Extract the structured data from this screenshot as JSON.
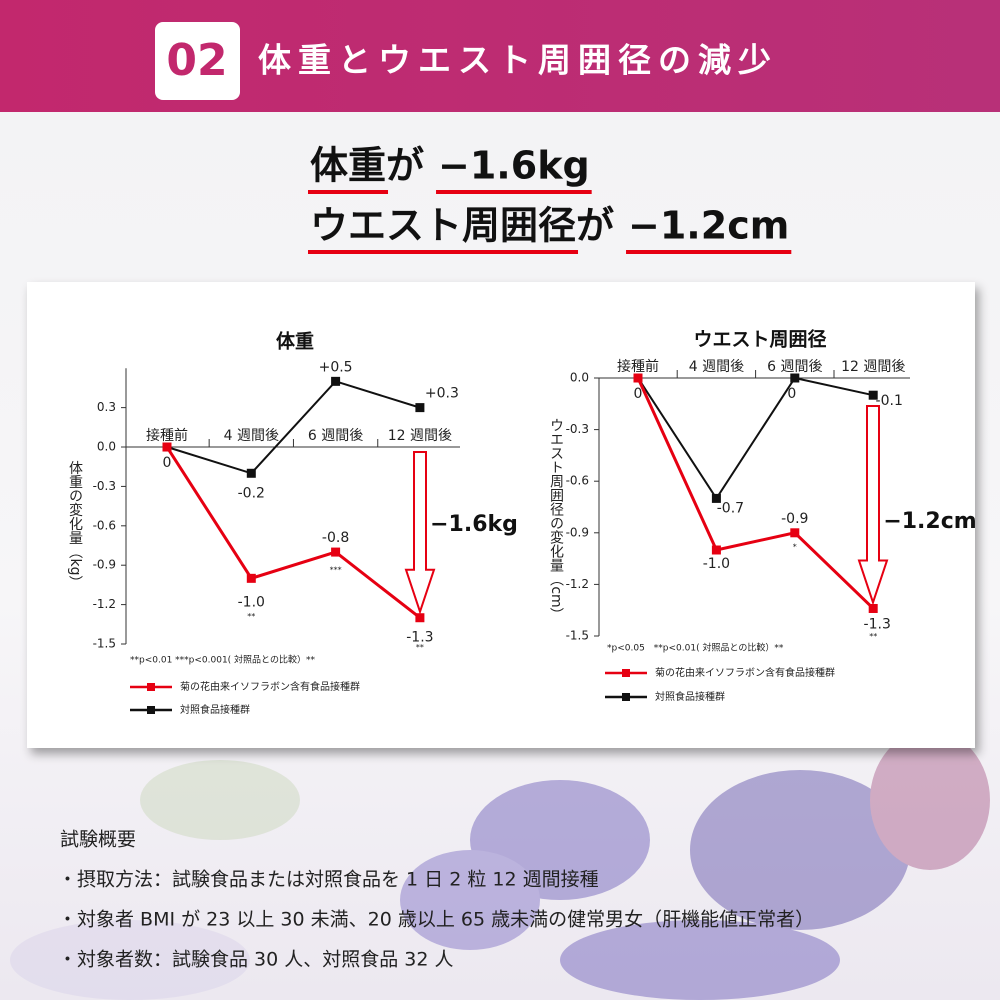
{
  "header": {
    "number": "02",
    "title": "体重とウエスト周囲径の減少"
  },
  "headline": [
    {
      "subject": "体重",
      "particle": "が",
      "value": "−1.6kg"
    },
    {
      "subject": "ウエスト周囲径",
      "particle": "が",
      "value": "−1.2cm"
    }
  ],
  "chart_data": [
    {
      "type": "line",
      "title": "体重",
      "y_label": "体重の変化量（kg）",
      "categories": [
        "接種前",
        "4 週間後",
        "6 週間後",
        "12 週間後"
      ],
      "ylim": [
        -1.5,
        0.6
      ],
      "yticks": [
        {
          "value": 0.3,
          "label": "0.3"
        },
        {
          "value": 0,
          "label": "0.0"
        },
        -0.3,
        -0.6,
        -0.9,
        -1.2,
        -1.5
      ],
      "series": [
        {
          "name": "菊の花由来イソフラボン含有食品接種群",
          "color": "#e60012",
          "values": [
            0,
            -1.0,
            -0.8,
            -1.3
          ],
          "value_labels": [
            "0",
            "-1.0",
            "-0.8",
            "-1.3"
          ],
          "significance": [
            null,
            "**",
            "***",
            "**"
          ]
        },
        {
          "name": "対照食品接種群",
          "color": "#111111",
          "values": [
            0,
            -0.2,
            0.5,
            0.3
          ],
          "value_labels": [
            null,
            "-0.2",
            "+0.5",
            "+0.3"
          ]
        }
      ],
      "note": "**p<0.01 ***p<0.001( 対照品との比較）**",
      "annotation": "−1.6kg"
    },
    {
      "type": "line",
      "title": "ウエスト周囲径",
      "y_label": "ウエスト周囲径の変化量（cm）",
      "categories": [
        "接種前",
        "4 週間後",
        "6 週間後",
        "12 週間後"
      ],
      "ylim": [
        -1.5,
        0
      ],
      "yticks": [
        {
          "value": 0,
          "label": "0.0"
        },
        -0.3,
        -0.6,
        -0.9,
        -1.2,
        -1.5
      ],
      "series": [
        {
          "name": "菊の花由来イソフラボン含有食品接種群",
          "color": "#e60012",
          "values": [
            0,
            -1.0,
            -0.9,
            -1.34
          ],
          "value_labels": [
            "0",
            "-1.0",
            "-0.9",
            "-1.3"
          ],
          "significance": [
            null,
            null,
            "*",
            "**"
          ]
        },
        {
          "name": "対照食品接種群",
          "color": "#111111",
          "values": [
            0,
            -0.7,
            0,
            -0.1
          ],
          "value_labels": [
            null,
            "-0.7",
            "0",
            "-0.1"
          ]
        }
      ],
      "note": "*p<0.05　**p<0.01( 対照品との比較）**",
      "annotation": "−1.2cm"
    }
  ],
  "summary": {
    "title": "試験概要",
    "items": [
      "・摂取方法：試験食品または対照食品を 1 日 2 粒 12 週間接種",
      "・対象者 BMI が 23 以上 30 未満、20 歳以上 65 歳未満の健常男女（肝機能値正常者）",
      "・対象者数：試験食品 30 人、対照食品 32 人"
    ]
  }
}
